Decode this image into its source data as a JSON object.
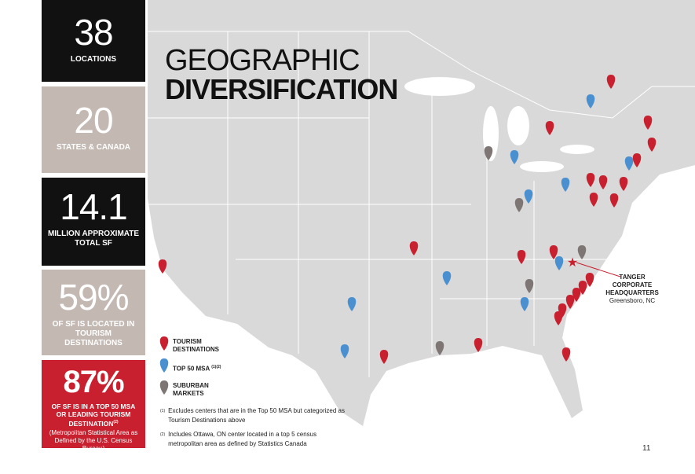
{
  "stats": [
    {
      "value": "38",
      "label": "LOCATIONS"
    },
    {
      "value": "20",
      "label": "STATES & CANADA"
    },
    {
      "value": "14.1",
      "label": "MILLION APPROXIMATE TOTAL SF"
    },
    {
      "value": "59%",
      "label": "OF SF IS LOCATED IN TOURISM DESTINATIONS"
    },
    {
      "value": "87%",
      "label": "OF SF IS IN A TOP 50 MSA OR LEADING TOURISM DESTINATION",
      "sup": "(2)",
      "note": "(Metropolitan Statistical Area as Defined by the U.S. Census Bureau)"
    }
  ],
  "title": [
    "GEOGRAPHIC",
    "DIVERSIFICATION"
  ],
  "legend": [
    {
      "label": "TOURISM DESTINATIONS"
    },
    {
      "label": "TOP 50 MSA",
      "sup": "(1)(2)"
    },
    {
      "label": "SUBURBAN MARKETS"
    }
  ],
  "footnotes": [
    {
      "mark": "(1)",
      "text": "Excludes centers that are in the Top 50 MSA but categorized as Tourism Destinations above"
    },
    {
      "mark": "(2)",
      "text": "Includes Ottawa, ON center located in a top 5 census metropolitan area as defined by Statistics Canada"
    }
  ],
  "callout": {
    "title": "TANGER CORPORATE HEADQUARTERS",
    "location": "Greensboro, NC"
  },
  "page_number": "11"
}
